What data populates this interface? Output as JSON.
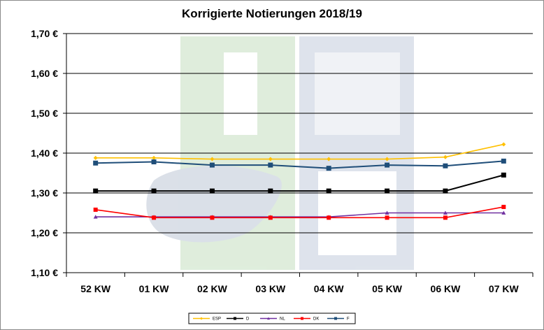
{
  "chart_data": {
    "type": "line",
    "title": "Korrigierte Notierungen 2018/19",
    "categories": [
      "52 KW",
      "01 KW",
      "02 KW",
      "03 KW",
      "04 KW",
      "05 KW",
      "06 KW",
      "07 KW"
    ],
    "yticks": [
      "1,10 €",
      "1,20 €",
      "1,30 €",
      "1,40 €",
      "1,50 €",
      "1,60 €",
      "1,70 €"
    ],
    "ylim": [
      1.1,
      1.7
    ],
    "grid": true,
    "legend_position": "bottom",
    "series": [
      {
        "name": "ESP",
        "color": "#FFC000",
        "marker": "diamond",
        "values": [
          1.388,
          1.388,
          1.385,
          1.385,
          1.385,
          1.385,
          1.39,
          1.422
        ]
      },
      {
        "name": "D",
        "color": "#000000",
        "marker": "square",
        "values": [
          1.305,
          1.305,
          1.305,
          1.305,
          1.305,
          1.305,
          1.305,
          1.345
        ]
      },
      {
        "name": "NL",
        "color": "#7030A0",
        "marker": "triangle",
        "values": [
          1.24,
          1.24,
          1.24,
          1.24,
          1.24,
          1.25,
          1.25,
          1.25
        ]
      },
      {
        "name": "DK",
        "color": "#FF0000",
        "marker": "square",
        "values": [
          1.258,
          1.238,
          1.238,
          1.238,
          1.238,
          1.238,
          1.238,
          1.265
        ]
      },
      {
        "name": "F",
        "color": "#1F4E79",
        "marker": "square",
        "values": [
          1.375,
          1.378,
          1.37,
          1.37,
          1.362,
          1.37,
          1.368,
          1.38
        ]
      }
    ]
  }
}
